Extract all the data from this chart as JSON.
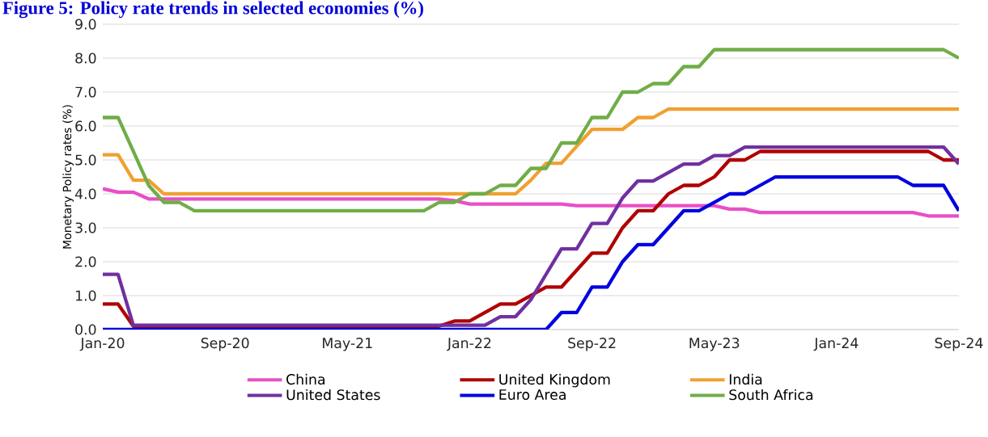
{
  "chart_data": {
    "type": "line",
    "title": "Figure 5: Policy rate trends in selected economies (%)",
    "ylabel": "Monetary Policy rates (%)",
    "x": [
      "2020-01",
      "2020-02",
      "2020-03",
      "2020-04",
      "2020-05",
      "2020-06",
      "2020-07",
      "2020-08",
      "2020-09",
      "2020-10",
      "2020-11",
      "2020-12",
      "2021-01",
      "2021-02",
      "2021-03",
      "2021-04",
      "2021-05",
      "2021-06",
      "2021-07",
      "2021-08",
      "2021-09",
      "2021-10",
      "2021-11",
      "2021-12",
      "2022-01",
      "2022-02",
      "2022-03",
      "2022-04",
      "2022-05",
      "2022-06",
      "2022-07",
      "2022-08",
      "2022-09",
      "2022-10",
      "2022-11",
      "2022-12",
      "2023-01",
      "2023-02",
      "2023-03",
      "2023-04",
      "2023-05",
      "2023-06",
      "2023-07",
      "2023-08",
      "2023-09",
      "2023-10",
      "2023-11",
      "2023-12",
      "2024-01",
      "2024-02",
      "2024-03",
      "2024-04",
      "2024-05",
      "2024-06",
      "2024-07",
      "2024-08",
      "2024-09"
    ],
    "series": [
      {
        "name": "China",
        "color": "#e84fc6",
        "values": [
          4.15,
          4.05,
          4.05,
          3.85,
          3.85,
          3.85,
          3.85,
          3.85,
          3.85,
          3.85,
          3.85,
          3.85,
          3.85,
          3.85,
          3.85,
          3.85,
          3.85,
          3.85,
          3.85,
          3.85,
          3.85,
          3.85,
          3.85,
          3.8,
          3.7,
          3.7,
          3.7,
          3.7,
          3.7,
          3.7,
          3.7,
          3.65,
          3.65,
          3.65,
          3.65,
          3.65,
          3.65,
          3.65,
          3.65,
          3.65,
          3.65,
          3.55,
          3.55,
          3.45,
          3.45,
          3.45,
          3.45,
          3.45,
          3.45,
          3.45,
          3.45,
          3.45,
          3.45,
          3.45,
          3.35,
          3.35,
          3.35
        ]
      },
      {
        "name": "United Kingdom",
        "color": "#b00000",
        "values": [
          0.75,
          0.75,
          0.1,
          0.1,
          0.1,
          0.1,
          0.1,
          0.1,
          0.1,
          0.1,
          0.1,
          0.1,
          0.1,
          0.1,
          0.1,
          0.1,
          0.1,
          0.1,
          0.1,
          0.1,
          0.1,
          0.1,
          0.1,
          0.25,
          0.25,
          0.5,
          0.75,
          0.75,
          1.0,
          1.25,
          1.25,
          1.75,
          2.25,
          2.25,
          3.0,
          3.5,
          3.5,
          4.0,
          4.25,
          4.25,
          4.5,
          5.0,
          5.0,
          5.25,
          5.25,
          5.25,
          5.25,
          5.25,
          5.25,
          5.25,
          5.25,
          5.25,
          5.25,
          5.25,
          5.25,
          5.0,
          5.0
        ]
      },
      {
        "name": "India",
        "color": "#f0a030",
        "values": [
          5.15,
          5.15,
          4.4,
          4.4,
          4.0,
          4.0,
          4.0,
          4.0,
          4.0,
          4.0,
          4.0,
          4.0,
          4.0,
          4.0,
          4.0,
          4.0,
          4.0,
          4.0,
          4.0,
          4.0,
          4.0,
          4.0,
          4.0,
          4.0,
          4.0,
          4.0,
          4.0,
          4.0,
          4.4,
          4.9,
          4.9,
          5.4,
          5.9,
          5.9,
          5.9,
          6.25,
          6.25,
          6.5,
          6.5,
          6.5,
          6.5,
          6.5,
          6.5,
          6.5,
          6.5,
          6.5,
          6.5,
          6.5,
          6.5,
          6.5,
          6.5,
          6.5,
          6.5,
          6.5,
          6.5,
          6.5,
          6.5
        ]
      },
      {
        "name": "United States",
        "color": "#7030a0",
        "values": [
          1.63,
          1.63,
          0.13,
          0.13,
          0.13,
          0.13,
          0.13,
          0.13,
          0.13,
          0.13,
          0.13,
          0.13,
          0.13,
          0.13,
          0.13,
          0.13,
          0.13,
          0.13,
          0.13,
          0.13,
          0.13,
          0.13,
          0.13,
          0.13,
          0.13,
          0.13,
          0.38,
          0.38,
          0.88,
          1.63,
          2.38,
          2.38,
          3.13,
          3.13,
          3.88,
          4.38,
          4.38,
          4.63,
          4.88,
          4.88,
          5.13,
          5.13,
          5.38,
          5.38,
          5.38,
          5.38,
          5.38,
          5.38,
          5.38,
          5.38,
          5.38,
          5.38,
          5.38,
          5.38,
          5.38,
          5.38,
          4.88
        ]
      },
      {
        "name": "Euro Area",
        "color": "#0000e0",
        "values": [
          0,
          0,
          0,
          0,
          0,
          0,
          0,
          0,
          0,
          0,
          0,
          0,
          0,
          0,
          0,
          0,
          0,
          0,
          0,
          0,
          0,
          0,
          0,
          0,
          0,
          0,
          0,
          0,
          0,
          0,
          0.5,
          0.5,
          1.25,
          1.25,
          2.0,
          2.5,
          2.5,
          3.0,
          3.5,
          3.5,
          3.75,
          4.0,
          4.0,
          4.25,
          4.5,
          4.5,
          4.5,
          4.5,
          4.5,
          4.5,
          4.5,
          4.5,
          4.5,
          4.25,
          4.25,
          4.25,
          3.5
        ]
      },
      {
        "name": "South Africa",
        "color": "#70ad47",
        "values": [
          6.25,
          6.25,
          5.25,
          4.25,
          3.75,
          3.75,
          3.5,
          3.5,
          3.5,
          3.5,
          3.5,
          3.5,
          3.5,
          3.5,
          3.5,
          3.5,
          3.5,
          3.5,
          3.5,
          3.5,
          3.5,
          3.5,
          3.75,
          3.75,
          4.0,
          4.0,
          4.25,
          4.25,
          4.75,
          4.75,
          5.5,
          5.5,
          6.25,
          6.25,
          7.0,
          7.0,
          7.25,
          7.25,
          7.75,
          7.75,
          8.25,
          8.25,
          8.25,
          8.25,
          8.25,
          8.25,
          8.25,
          8.25,
          8.25,
          8.25,
          8.25,
          8.25,
          8.25,
          8.25,
          8.25,
          8.25,
          8.0
        ]
      }
    ],
    "xlim": [
      "2020-01",
      "2024-09"
    ],
    "xticks": [
      {
        "value": "2020-01",
        "label": "Jan-20"
      },
      {
        "value": "2020-09",
        "label": "Sep-20"
      },
      {
        "value": "2021-05",
        "label": "May-21"
      },
      {
        "value": "2022-01",
        "label": "Jan-22"
      },
      {
        "value": "2022-09",
        "label": "Sep-22"
      },
      {
        "value": "2023-05",
        "label": "May-23"
      },
      {
        "value": "2024-01",
        "label": "Jan-24"
      },
      {
        "value": "2024-09",
        "label": "Sep-24"
      }
    ],
    "ylim": [
      0,
      9
    ],
    "yticks": [
      {
        "value": 0,
        "label": "0.0"
      },
      {
        "value": 1,
        "label": "1.0"
      },
      {
        "value": 2,
        "label": "2.0"
      },
      {
        "value": 3,
        "label": "3.0"
      },
      {
        "value": 4,
        "label": "4.0"
      },
      {
        "value": 5,
        "label": "5.0"
      },
      {
        "value": 6,
        "label": "6.0"
      },
      {
        "value": 7,
        "label": "7.0"
      },
      {
        "value": 8,
        "label": "8.0"
      },
      {
        "value": 9,
        "label": "9.0"
      }
    ],
    "grid": "y",
    "legend": "bottom",
    "marker": "none",
    "line_style": "solid"
  }
}
